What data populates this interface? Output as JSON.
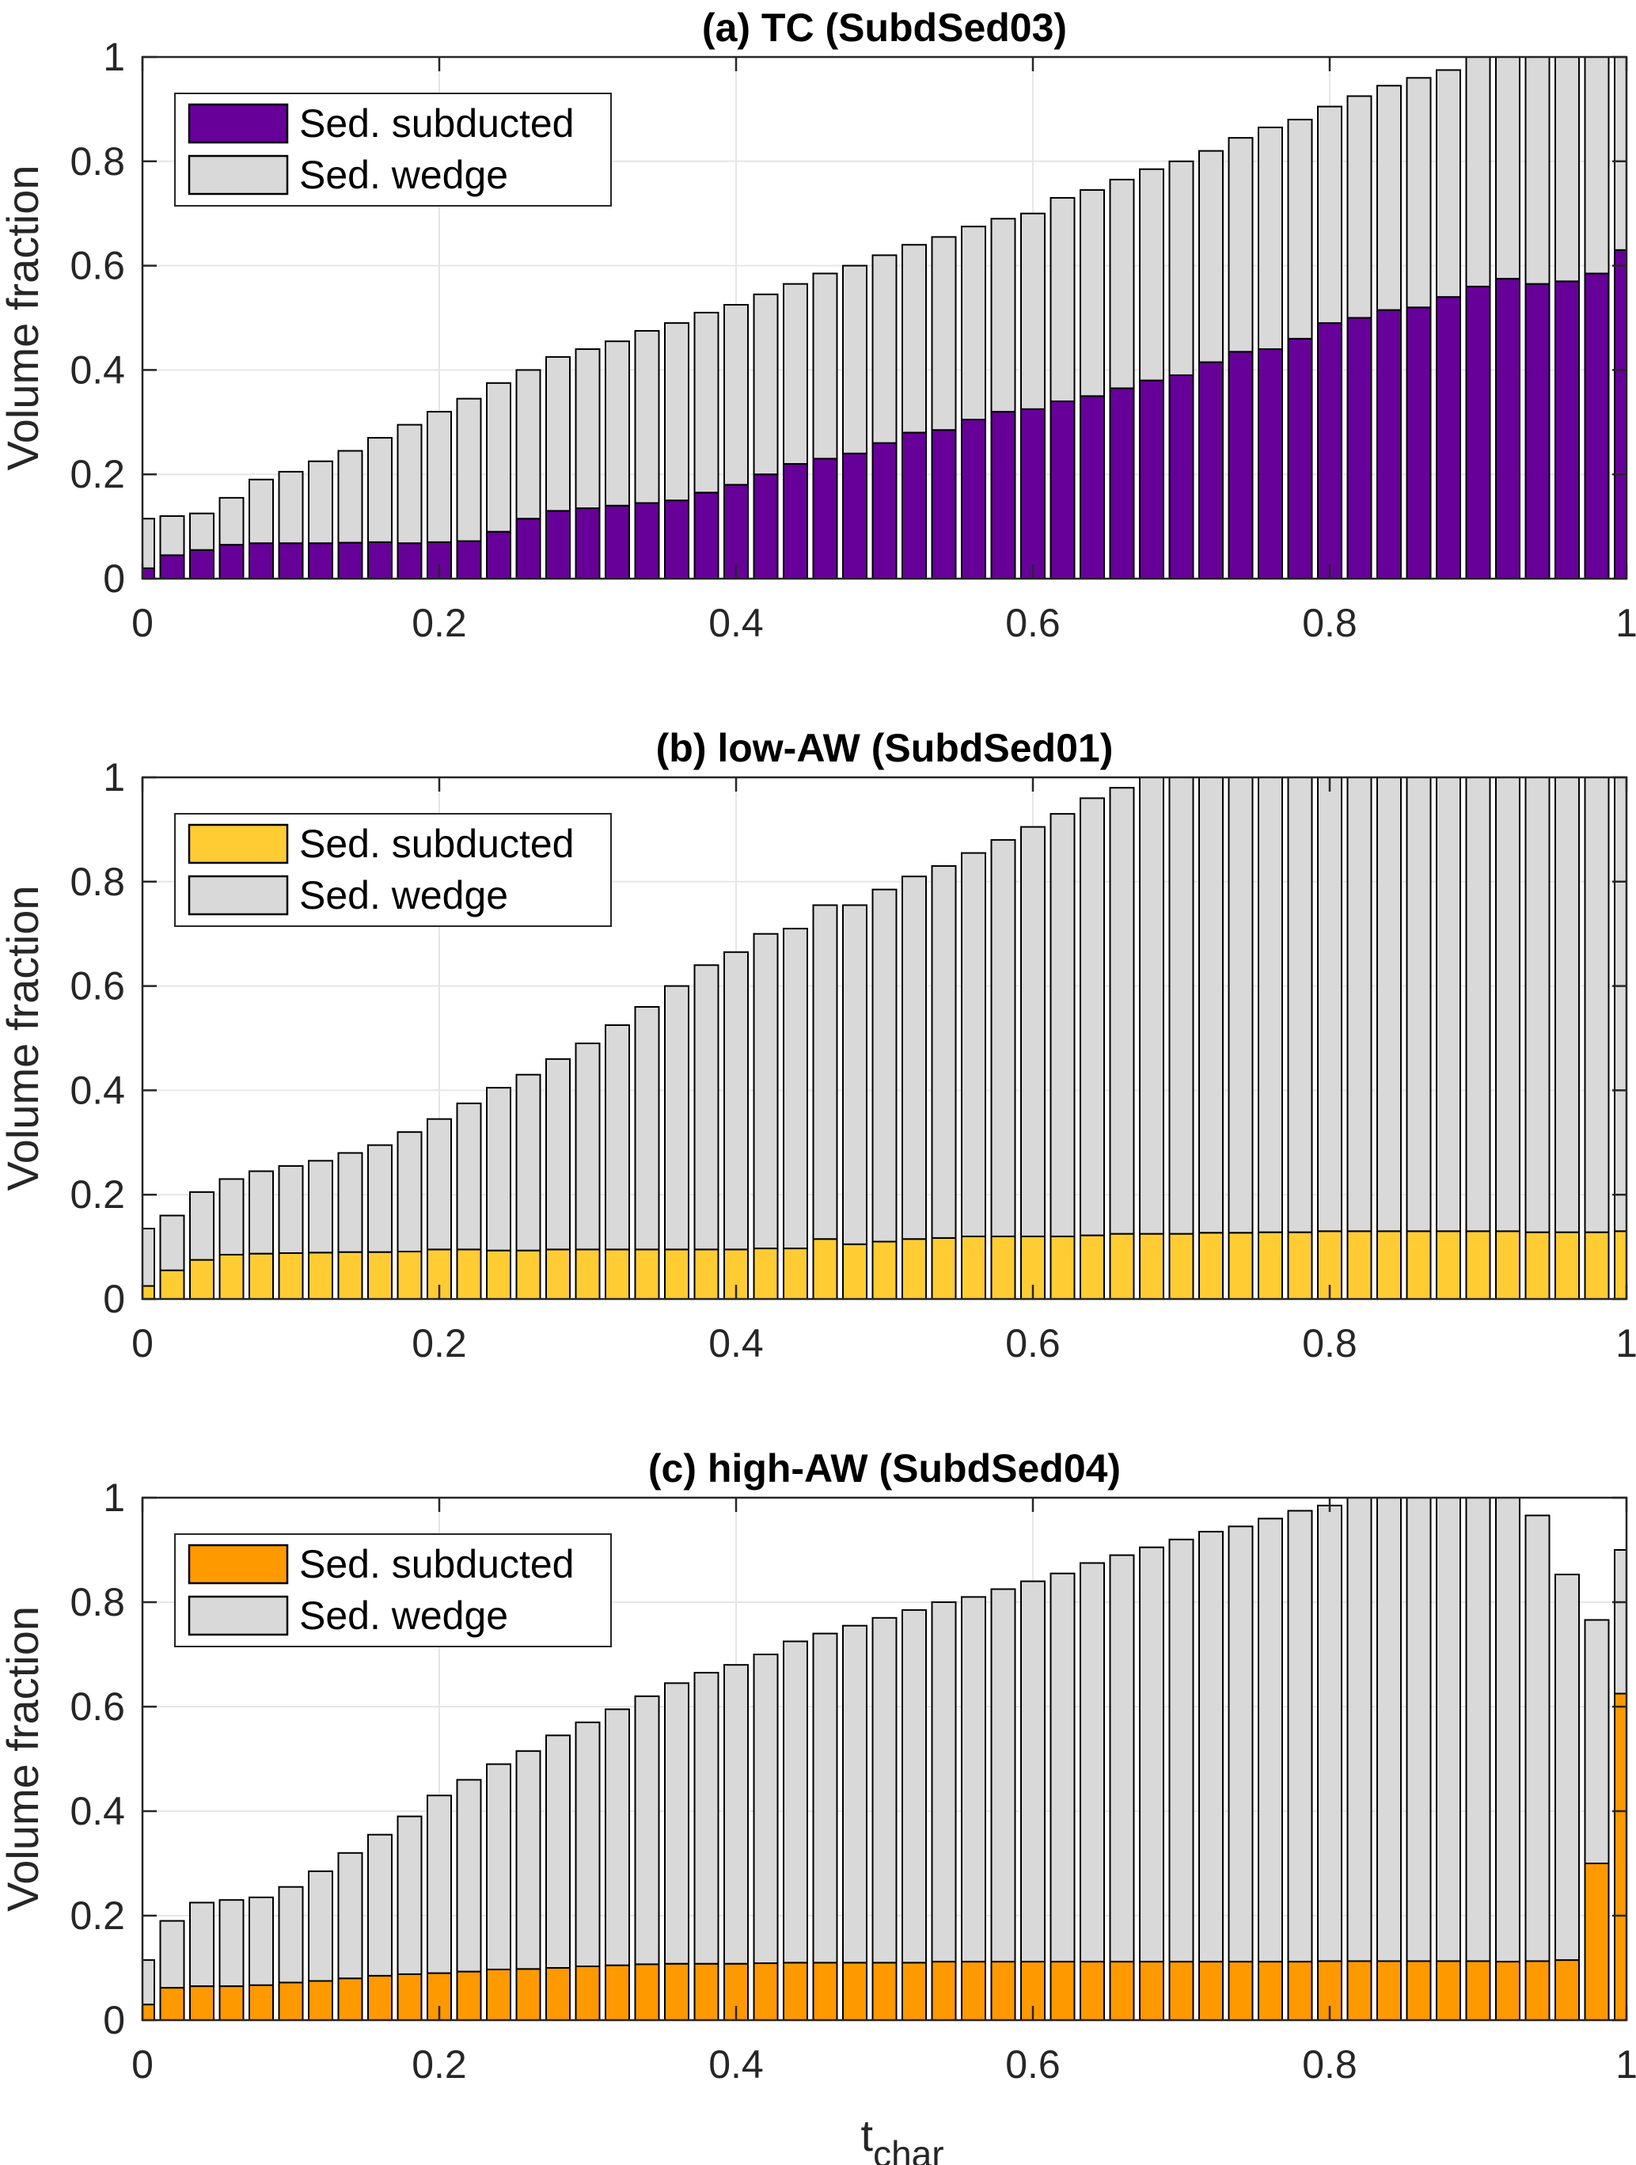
{
  "chart_data": [
    {
      "type": "bar",
      "stacked": true,
      "title": "(a) TC (SubdSed03)",
      "xlabel": "",
      "ylabel": "Volume fraction",
      "xlim": [
        0,
        1
      ],
      "ylim": [
        0,
        1
      ],
      "xticks": [
        "0",
        "0.2",
        "0.4",
        "0.6",
        "0.8",
        "1"
      ],
      "yticks": [
        "0",
        "0.2",
        "0.4",
        "0.6",
        "0.8",
        "1"
      ],
      "grid": true,
      "legend": "top-left",
      "x_start": 0,
      "x_step": 0.02,
      "series": [
        {
          "name": "Sed. subducted",
          "color": "#660099",
          "values": [
            0.02,
            0.045,
            0.055,
            0.065,
            0.068,
            0.068,
            0.068,
            0.069,
            0.07,
            0.068,
            0.07,
            0.072,
            0.09,
            0.115,
            0.13,
            0.135,
            0.14,
            0.145,
            0.15,
            0.165,
            0.18,
            0.2,
            0.22,
            0.23,
            0.24,
            0.26,
            0.28,
            0.285,
            0.305,
            0.32,
            0.325,
            0.34,
            0.35,
            0.365,
            0.38,
            0.39,
            0.415,
            0.435,
            0.44,
            0.46,
            0.49,
            0.5,
            0.515,
            0.52,
            0.54,
            0.56,
            0.575,
            0.565,
            0.57,
            0.585,
            0.63
          ]
        },
        {
          "name": "Sed. wedge",
          "color": "#d9d9d9",
          "values": [
            0.095,
            0.075,
            0.07,
            0.09,
            0.122,
            0.137,
            0.157,
            0.176,
            0.2,
            0.227,
            0.25,
            0.273,
            0.285,
            0.285,
            0.295,
            0.305,
            0.315,
            0.33,
            0.34,
            0.345,
            0.345,
            0.345,
            0.345,
            0.355,
            0.36,
            0.36,
            0.36,
            0.37,
            0.37,
            0.37,
            0.375,
            0.39,
            0.395,
            0.4,
            0.405,
            0.41,
            0.405,
            0.41,
            0.425,
            0.42,
            0.415,
            0.425,
            0.43,
            0.44,
            0.435,
            0.44,
            0.425,
            0.435,
            0.43,
            0.415,
            0.37
          ]
        }
      ]
    },
    {
      "type": "bar",
      "stacked": true,
      "title": "(b) low-AW (SubdSed01)",
      "xlabel": "",
      "ylabel": "Volume fraction",
      "xlim": [
        0,
        1
      ],
      "ylim": [
        0,
        1
      ],
      "xticks": [
        "0",
        "0.2",
        "0.4",
        "0.6",
        "0.8",
        "1"
      ],
      "yticks": [
        "0",
        "0.2",
        "0.4",
        "0.6",
        "0.8",
        "1"
      ],
      "grid": true,
      "legend": "top-left",
      "x_start": 0,
      "x_step": 0.02,
      "series": [
        {
          "name": "Sed. subducted",
          "color": "#ffcc33",
          "values": [
            0.025,
            0.055,
            0.075,
            0.085,
            0.087,
            0.088,
            0.089,
            0.09,
            0.09,
            0.091,
            0.095,
            0.095,
            0.093,
            0.093,
            0.095,
            0.095,
            0.095,
            0.095,
            0.095,
            0.095,
            0.095,
            0.097,
            0.097,
            0.115,
            0.105,
            0.11,
            0.115,
            0.117,
            0.12,
            0.12,
            0.12,
            0.12,
            0.122,
            0.125,
            0.125,
            0.125,
            0.127,
            0.127,
            0.128,
            0.128,
            0.13,
            0.13,
            0.13,
            0.13,
            0.13,
            0.13,
            0.13,
            0.128,
            0.128,
            0.128,
            0.13
          ]
        },
        {
          "name": "Sed. wedge",
          "color": "#d9d9d9",
          "values": [
            0.11,
            0.105,
            0.13,
            0.145,
            0.158,
            0.167,
            0.176,
            0.19,
            0.205,
            0.229,
            0.25,
            0.28,
            0.312,
            0.337,
            0.365,
            0.395,
            0.43,
            0.465,
            0.505,
            0.545,
            0.57,
            0.603,
            0.613,
            0.64,
            0.65,
            0.675,
            0.695,
            0.713,
            0.735,
            0.76,
            0.785,
            0.81,
            0.838,
            0.855,
            0.875,
            0.875,
            0.873,
            0.873,
            0.872,
            0.872,
            0.87,
            0.87,
            0.87,
            0.87,
            0.87,
            0.87,
            0.87,
            0.872,
            0.872,
            0.872,
            0.87
          ]
        }
      ]
    },
    {
      "type": "bar",
      "stacked": true,
      "title": "(c) high-AW (SubdSed04)",
      "xlabel": "t",
      "xlabel_subscript": "char",
      "ylabel": "Volume fraction",
      "xlim": [
        0,
        1
      ],
      "ylim": [
        0,
        1
      ],
      "xticks": [
        "0",
        "0.2",
        "0.4",
        "0.6",
        "0.8",
        "1"
      ],
      "yticks": [
        "0",
        "0.2",
        "0.4",
        "0.6",
        "0.8",
        "1"
      ],
      "grid": true,
      "legend": "top-left",
      "x_start": 0,
      "x_step": 0.02,
      "series": [
        {
          "name": "Sed. subducted",
          "color": "#ff9900",
          "values": [
            0.03,
            0.062,
            0.065,
            0.065,
            0.067,
            0.072,
            0.075,
            0.08,
            0.085,
            0.088,
            0.09,
            0.093,
            0.097,
            0.098,
            0.1,
            0.103,
            0.105,
            0.107,
            0.108,
            0.108,
            0.108,
            0.109,
            0.11,
            0.11,
            0.11,
            0.11,
            0.11,
            0.112,
            0.112,
            0.112,
            0.112,
            0.112,
            0.112,
            0.112,
            0.112,
            0.112,
            0.112,
            0.112,
            0.112,
            0.112,
            0.113,
            0.113,
            0.113,
            0.113,
            0.113,
            0.113,
            0.112,
            0.113,
            0.115,
            0.3,
            0.625
          ]
        },
        {
          "name": "Sed. wedge",
          "color": "#d9d9d9",
          "values": [
            0.085,
            0.128,
            0.16,
            0.165,
            0.168,
            0.183,
            0.21,
            0.24,
            0.27,
            0.302,
            0.34,
            0.367,
            0.393,
            0.417,
            0.445,
            0.467,
            0.49,
            0.513,
            0.537,
            0.557,
            0.572,
            0.591,
            0.615,
            0.63,
            0.645,
            0.66,
            0.675,
            0.688,
            0.698,
            0.713,
            0.728,
            0.743,
            0.763,
            0.778,
            0.793,
            0.808,
            0.823,
            0.833,
            0.848,
            0.863,
            0.872,
            0.887,
            0.887,
            0.887,
            0.887,
            0.887,
            0.888,
            0.853,
            0.738,
            0.466,
            0.275
          ]
        }
      ]
    }
  ]
}
